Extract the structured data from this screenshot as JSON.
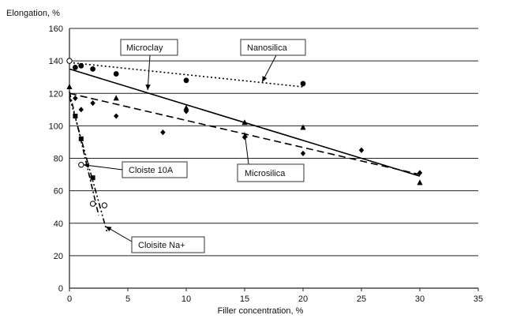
{
  "chart_data": {
    "type": "scatter",
    "title": "",
    "xlabel": "Filler concentration, %",
    "ylabel": "Elongation, %",
    "xlim": [
      0,
      35
    ],
    "ylim": [
      0,
      160
    ],
    "x_ticks": [
      0,
      5,
      10,
      15,
      20,
      25,
      30,
      35
    ],
    "y_ticks": [
      0,
      20,
      40,
      60,
      80,
      100,
      120,
      140,
      160
    ],
    "grid": "horizontal",
    "series": [
      {
        "name": "Nanosilica",
        "marker": "circle-filled",
        "points": [
          [
            0,
            140
          ],
          [
            0.5,
            136
          ],
          [
            1,
            137
          ],
          [
            2,
            135
          ],
          [
            4,
            132
          ],
          [
            10,
            128
          ],
          [
            20,
            126
          ]
        ],
        "trendline": {
          "style": "dotted",
          "from": [
            0,
            139
          ],
          "to": [
            20,
            124
          ]
        }
      },
      {
        "name": "Microclay",
        "marker": "triangle",
        "points": [
          [
            0,
            124
          ],
          [
            4,
            117
          ],
          [
            10,
            111
          ],
          [
            15,
            102
          ],
          [
            20,
            99
          ],
          [
            30,
            65
          ]
        ],
        "trendline": {
          "style": "solid",
          "from": [
            0,
            135
          ],
          "to": [
            30,
            69
          ]
        }
      },
      {
        "name": "Microsilica",
        "marker": "diamond",
        "points": [
          [
            0.5,
            117
          ],
          [
            1,
            110
          ],
          [
            2,
            114
          ],
          [
            4,
            106
          ],
          [
            8,
            96
          ],
          [
            10,
            109
          ],
          [
            15,
            93
          ],
          [
            20,
            83
          ],
          [
            25,
            85
          ],
          [
            30,
            71
          ]
        ],
        "trendline": {
          "style": "dashed",
          "from": [
            0,
            120
          ],
          "to": [
            30,
            70
          ]
        }
      },
      {
        "name": "Cloiste 10A",
        "marker": "square",
        "points": [
          [
            0.5,
            106
          ],
          [
            1,
            92
          ],
          [
            2,
            68
          ]
        ],
        "trendline": {
          "style": "dash-dot",
          "from": [
            0,
            121
          ],
          "to": [
            2.5,
            45
          ]
        }
      },
      {
        "name": "Cloisite Na+",
        "marker": "circle-open",
        "points": [
          [
            0,
            140
          ],
          [
            1,
            76
          ],
          [
            2,
            52
          ],
          [
            3,
            51
          ]
        ],
        "trendline": {
          "style": "dash-dot-dot",
          "from": [
            0,
            118
          ],
          "to": [
            3.2,
            35
          ]
        }
      }
    ],
    "annotations": [
      {
        "text": "Microclay",
        "series": "Microclay",
        "arrow_to": [
          6.7,
          122
        ]
      },
      {
        "text": "Nanosilica",
        "series": "Nanosilica",
        "arrow_to": [
          16.5,
          127
        ]
      },
      {
        "text": "Cloiste 10A",
        "series": "Cloiste 10A",
        "arrow_to": [
          1.2,
          76
        ]
      },
      {
        "text": "Microsilica",
        "series": "Microsilica",
        "arrow_to": [
          15,
          96
        ]
      },
      {
        "text": "Cloisite Na+",
        "series": "Cloisite Na+",
        "arrow_to": [
          3.1,
          38
        ]
      }
    ]
  }
}
